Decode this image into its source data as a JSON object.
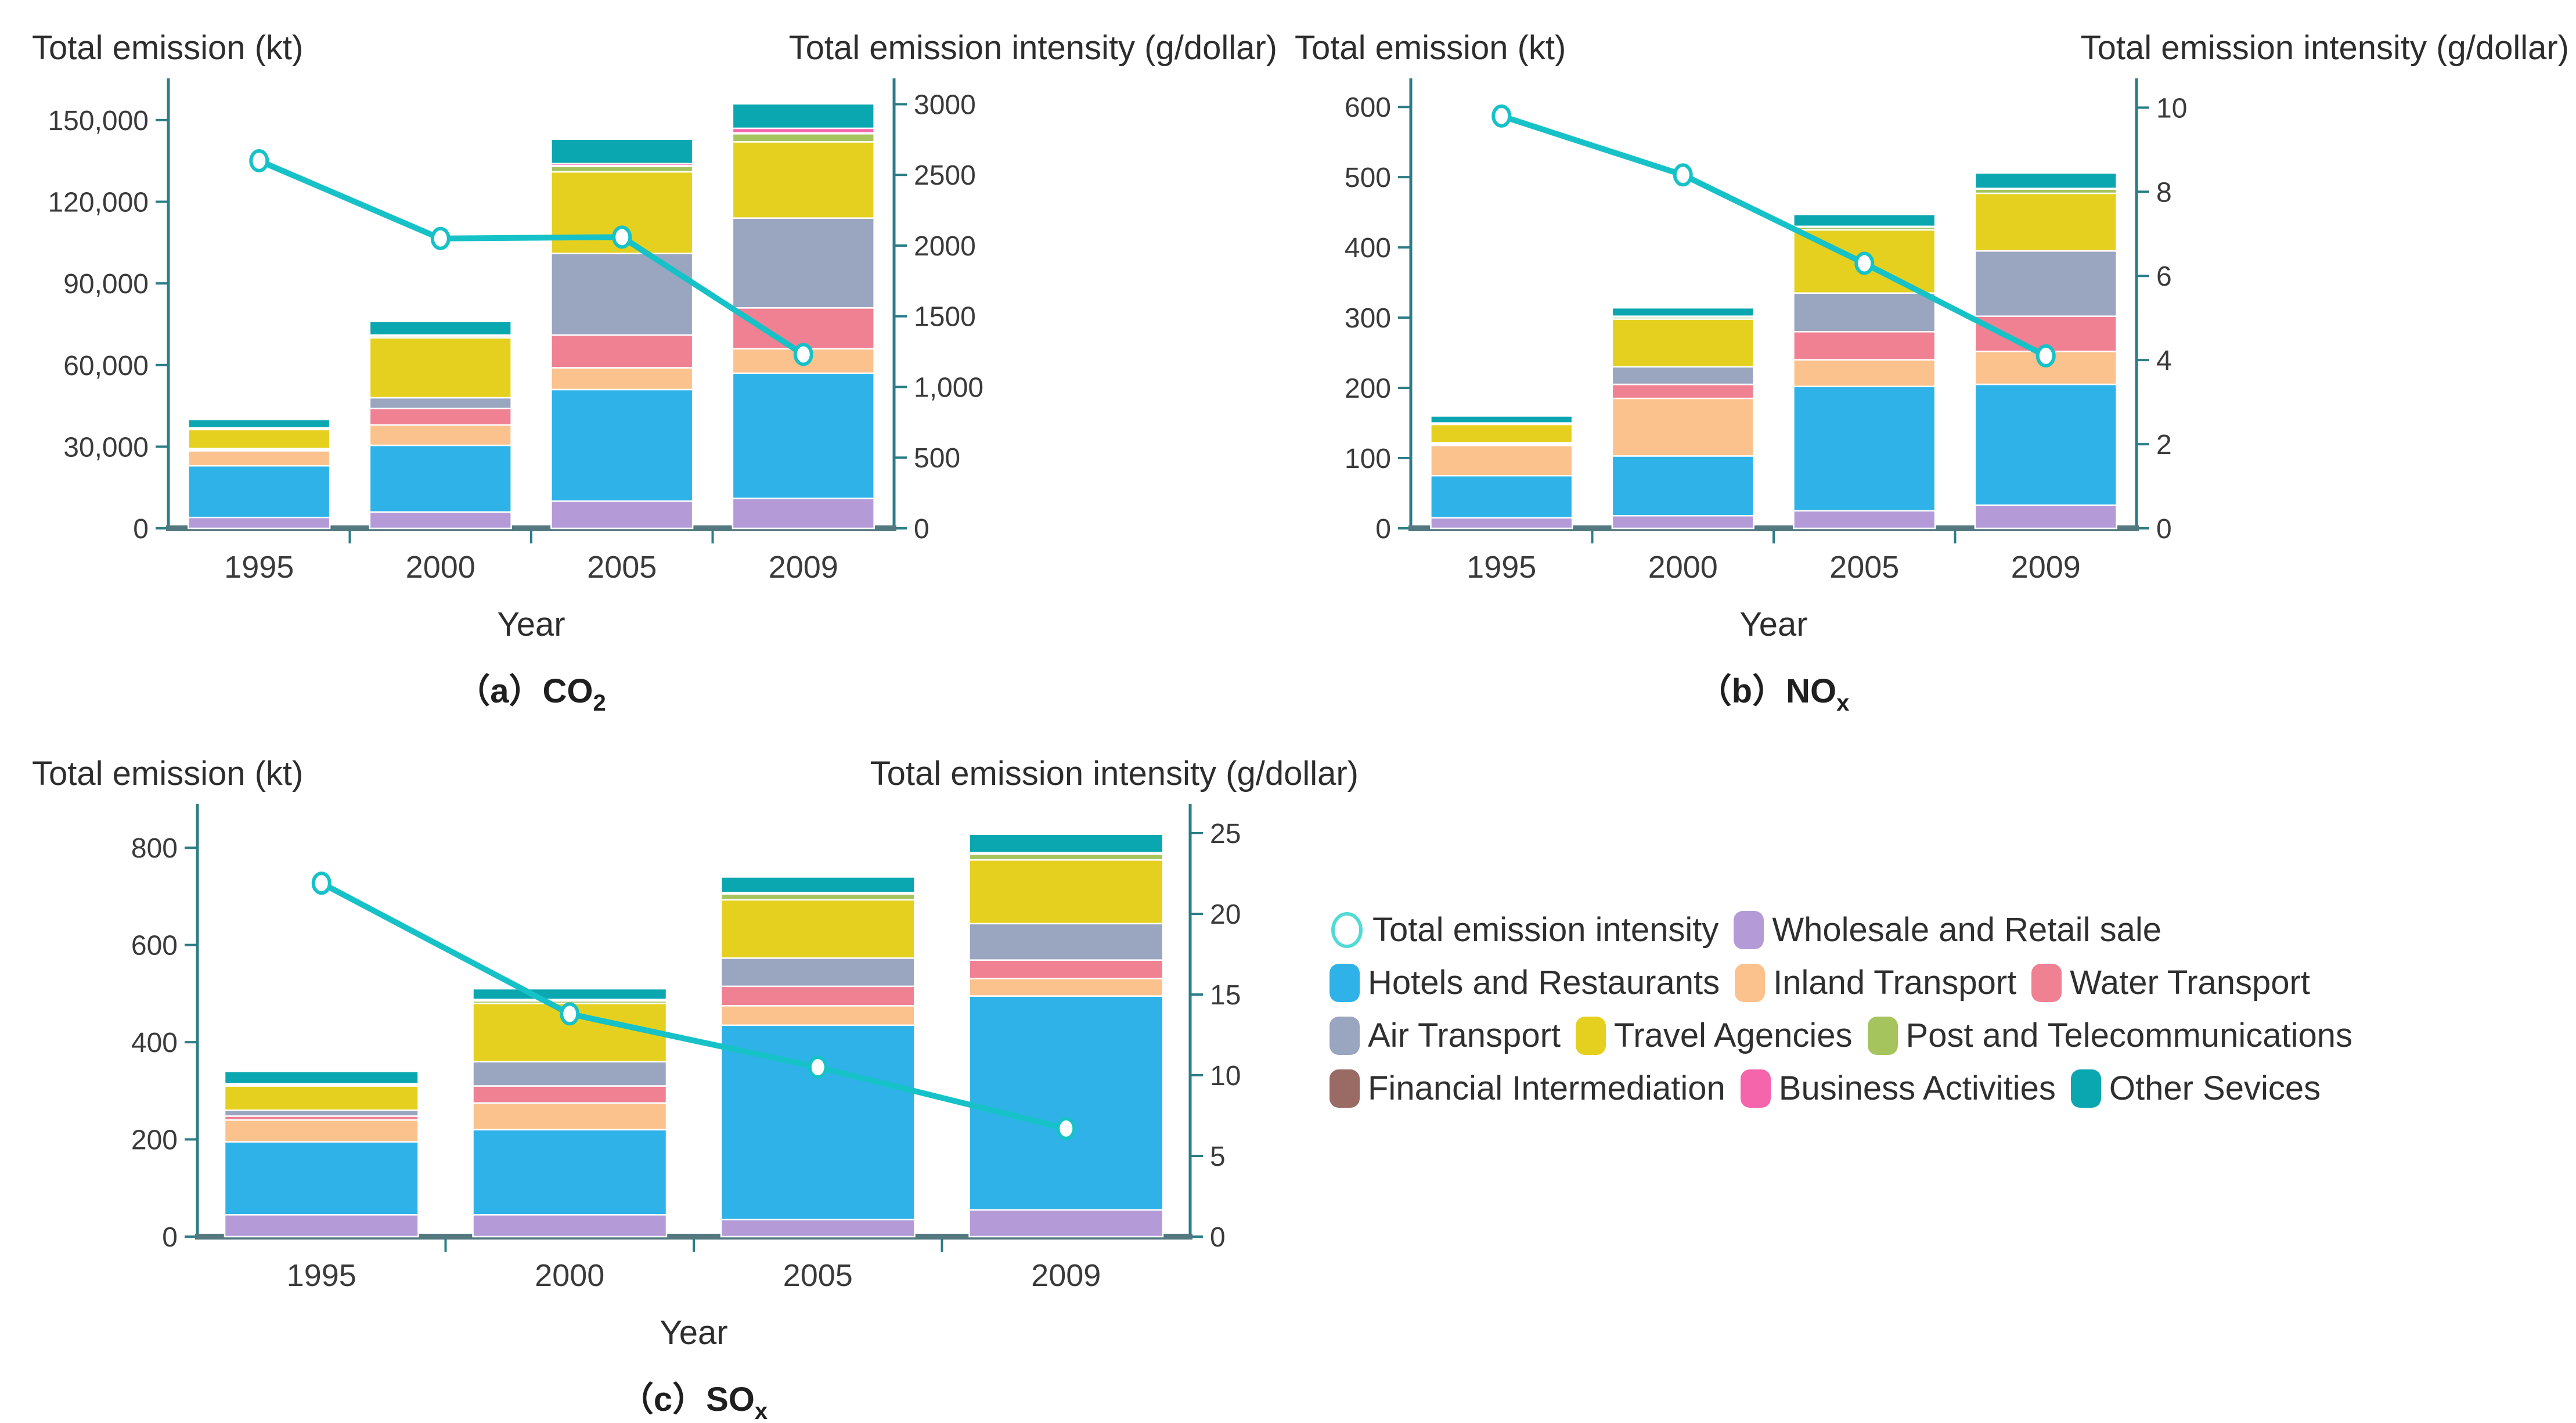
{
  "figure": {
    "background": "#ffffff",
    "axis_color": "#2c7d85",
    "baseline_color": "#53787f",
    "tick_text_color": "#3a3a3a",
    "title_text_color": "#2d2d2d",
    "line_color": "#16c2c7",
    "marker_fill": "#ffffff",
    "legend_marker_stroke": "#52dad5"
  },
  "series_colors": {
    "wholesale": "#b49bd8",
    "hotels": "#2fb2e8",
    "inland": "#fbc28d",
    "water": "#ef8193",
    "air": "#9aa5c0",
    "travel": "#e5d01f",
    "post": "#a6c45e",
    "financial": "#996b64",
    "business": "#f565ac",
    "other": "#0ba7b0"
  },
  "legend": {
    "rows": [
      [
        {
          "type": "marker",
          "key": "line",
          "label": "Total emission intensity"
        },
        {
          "type": "swatch",
          "key": "wholesale",
          "label": "Wholesale and Retail sale"
        }
      ],
      [
        {
          "type": "swatch",
          "key": "hotels",
          "label": "Hotels and Restaurants"
        },
        {
          "type": "swatch",
          "key": "inland",
          "label": "Inland Transport"
        },
        {
          "type": "swatch",
          "key": "water",
          "label": "Water Transport"
        }
      ],
      [
        {
          "type": "swatch",
          "key": "air",
          "label": "Air Transport"
        },
        {
          "type": "swatch",
          "key": "travel",
          "label": "Travel Agencies"
        },
        {
          "type": "swatch",
          "key": "post",
          "label": "Post and Telecommunications"
        }
      ],
      [
        {
          "type": "swatch",
          "key": "financial",
          "label": "Financial Intermediation"
        },
        {
          "type": "swatch",
          "key": "business",
          "label": "Business Activities"
        },
        {
          "type": "swatch",
          "key": "other",
          "label": "Other Sevices"
        }
      ]
    ]
  },
  "chart_data": [
    {
      "id": "co2",
      "type": "bar+line",
      "caption": {
        "pre": "（a）CO",
        "sub": "2"
      },
      "title_left": "Total emission (kt)",
      "title_right": "Total emission intensity (g/dollar)",
      "xlabel": "Year",
      "categories": [
        "1995",
        "2000",
        "2005",
        "2009"
      ],
      "left_axis": {
        "max": 160000,
        "ticks": [
          0,
          30000,
          60000,
          90000,
          120000,
          150000
        ],
        "labels": [
          "0",
          "30,000",
          "60,000",
          "90,000",
          "120,000",
          "150,000"
        ]
      },
      "right_axis": {
        "max": 3080,
        "ticks": [
          0,
          500,
          1000,
          1500,
          2000,
          2500,
          3000
        ],
        "labels": [
          "0",
          "500",
          "1,000",
          "1500",
          "2000",
          "2500",
          "3000"
        ]
      },
      "series": [
        {
          "key": "wholesale",
          "name": "Wholesale and Retail sale",
          "values": [
            4000,
            6000,
            10000,
            11000
          ]
        },
        {
          "key": "hotels",
          "name": "Hotels and Restaurants",
          "values": [
            19000,
            24500,
            41000,
            46000
          ]
        },
        {
          "key": "inland",
          "name": "Inland Transport",
          "values": [
            5500,
            7500,
            8000,
            9000
          ]
        },
        {
          "key": "water",
          "name": "Water Transport",
          "values": [
            400,
            6000,
            12000,
            15000
          ]
        },
        {
          "key": "air",
          "name": "Air Transport",
          "values": [
            400,
            4000,
            30000,
            33000
          ]
        },
        {
          "key": "travel",
          "name": "Travel Agencies",
          "values": [
            7000,
            22000,
            30000,
            28000
          ]
        },
        {
          "key": "post",
          "name": "Post and Telecommunications",
          "values": [
            300,
            700,
            2000,
            3000
          ]
        },
        {
          "key": "financial",
          "name": "Financial Intermediation",
          "values": [
            100,
            150,
            300,
            300
          ]
        },
        {
          "key": "business",
          "name": "Business Activities",
          "values": [
            200,
            150,
            700,
            1700
          ]
        },
        {
          "key": "other",
          "name": "Other Sevices",
          "values": [
            3100,
            5000,
            9000,
            9000
          ]
        }
      ],
      "line": {
        "name": "Total emission intensity",
        "axis": "right",
        "values": [
          2600,
          2050,
          2060,
          1230
        ]
      }
    },
    {
      "id": "nox",
      "type": "bar+line",
      "caption": {
        "pre": "（b）NO",
        "sub": "x"
      },
      "title_left": "Total emission (kt)",
      "title_right": "Total emission intensity (g/dollar)",
      "xlabel": "Year",
      "categories": [
        "1995",
        "2000",
        "2005",
        "2009"
      ],
      "left_axis": {
        "max": 620,
        "ticks": [
          0,
          100,
          200,
          300,
          400,
          500,
          600
        ],
        "labels": [
          "0",
          "100",
          "200",
          "300",
          "400",
          "500",
          "600"
        ]
      },
      "right_axis": {
        "max": 10.35,
        "ticks": [
          0,
          2,
          4,
          6,
          8,
          10
        ],
        "labels": [
          "0",
          "2",
          "4",
          "6",
          "8",
          "10"
        ]
      },
      "series": [
        {
          "key": "wholesale",
          "name": "Wholesale and Retail sale",
          "values": [
            15,
            18,
            25,
            33
          ]
        },
        {
          "key": "hotels",
          "name": "Hotels and Restaurants",
          "values": [
            60,
            85,
            177,
            172
          ]
        },
        {
          "key": "inland",
          "name": "Inland Transport",
          "values": [
            43,
            82,
            38,
            47
          ]
        },
        {
          "key": "water",
          "name": "Water Transport",
          "values": [
            2,
            20,
            40,
            50
          ]
        },
        {
          "key": "air",
          "name": "Air Transport",
          "values": [
            2,
            25,
            55,
            93
          ]
        },
        {
          "key": "travel",
          "name": "Travel Agencies",
          "values": [
            26,
            68,
            90,
            82
          ]
        },
        {
          "key": "post",
          "name": "Post and Telecommunications",
          "values": [
            1,
            3,
            4,
            6
          ]
        },
        {
          "key": "financial",
          "name": "Financial Intermediation",
          "values": [
            0.5,
            0.5,
            0.5,
            0.5
          ]
        },
        {
          "key": "business",
          "name": "Business Activities",
          "values": [
            0.5,
            0.5,
            0.5,
            0.5
          ]
        },
        {
          "key": "other",
          "name": "Other Sevices",
          "values": [
            10,
            12,
            17,
            22
          ]
        }
      ],
      "line": {
        "name": "Total emission intensity",
        "axis": "right",
        "values": [
          9.8,
          8.4,
          6.3,
          4.1
        ]
      }
    },
    {
      "id": "sox",
      "type": "bar+line",
      "caption": {
        "pre": "（c）SO",
        "sub": "x"
      },
      "title_left": "Total emission (kt)",
      "title_right": "Total emission intensity (g/dollar)",
      "xlabel": "Year",
      "categories": [
        "1995",
        "2000",
        "2005",
        "2009"
      ],
      "left_axis": {
        "max": 860,
        "ticks": [
          0,
          200,
          400,
          600,
          800
        ],
        "labels": [
          "0",
          "200",
          "400",
          "600",
          "800"
        ]
      },
      "right_axis": {
        "max": 25.9,
        "ticks": [
          0,
          5,
          10,
          15,
          20,
          25
        ],
        "labels": [
          "0",
          "5",
          "10",
          "15",
          "20",
          "25"
        ]
      },
      "series": [
        {
          "key": "wholesale",
          "name": "Wholesale and Retail sale",
          "values": [
            45,
            45,
            35,
            55
          ]
        },
        {
          "key": "hotels",
          "name": "Hotels and Restaurants",
          "values": [
            150,
            175,
            400,
            440
          ]
        },
        {
          "key": "inland",
          "name": "Inland Transport",
          "values": [
            45,
            55,
            40,
            36
          ]
        },
        {
          "key": "water",
          "name": "Water Transport",
          "values": [
            8,
            35,
            40,
            38
          ]
        },
        {
          "key": "air",
          "name": "Air Transport",
          "values": [
            12,
            50,
            58,
            75
          ]
        },
        {
          "key": "travel",
          "name": "Travel Agencies",
          "values": [
            50,
            120,
            120,
            131
          ]
        },
        {
          "key": "post",
          "name": "Post and Telecommunications",
          "values": [
            3,
            5,
            12,
            12
          ]
        },
        {
          "key": "financial",
          "name": "Financial Intermediation",
          "values": [
            1,
            1,
            1,
            1
          ]
        },
        {
          "key": "business",
          "name": "Business Activities",
          "values": [
            1,
            2,
            2,
            2
          ]
        },
        {
          "key": "other",
          "name": "Other Sevices",
          "values": [
            25,
            22,
            32,
            38
          ]
        }
      ],
      "line": {
        "name": "Total emission intensity",
        "axis": "right",
        "values": [
          21.9,
          13.8,
          10.5,
          6.7
        ]
      }
    }
  ]
}
